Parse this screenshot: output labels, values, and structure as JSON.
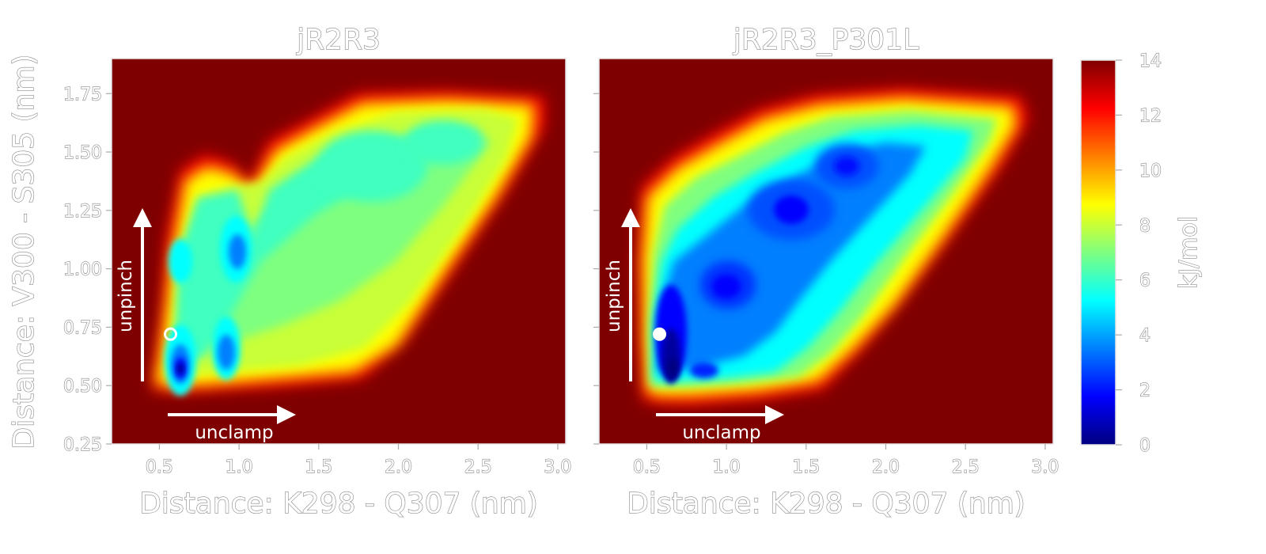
{
  "chart_data": [
    {
      "type": "heatmap",
      "title": "jR2R3",
      "xlabel": "Distance: K298 - Q307 (nm)",
      "ylabel": "Distance: V300 - S305 (nm)",
      "xlim": [
        0.2,
        3.05
      ],
      "ylim": [
        0.25,
        1.9
      ],
      "x_ticks": [
        "0.5",
        "1.0",
        "1.5",
        "2.0",
        "2.5",
        "3.0"
      ],
      "y_ticks": [
        "0.25",
        "0.50",
        "0.75",
        "1.00",
        "1.25",
        "1.50",
        "1.75"
      ],
      "background_value": 14,
      "basins": [
        {
          "x": 0.57,
          "y": 0.58,
          "value": 1.5
        },
        {
          "x": 0.88,
          "y": 0.65,
          "value": 3
        },
        {
          "x": 0.98,
          "y": 1.08,
          "value": 3.5
        },
        {
          "x": 0.58,
          "y": 1.05,
          "value": 5
        },
        {
          "x": 1.8,
          "y": 1.45,
          "value": 5
        }
      ],
      "marker": {
        "x": 0.57,
        "y": 0.72,
        "style": "open-circle"
      },
      "arrows": [
        {
          "label": "unpinch",
          "direction": "up"
        },
        {
          "label": "unclamp",
          "direction": "right"
        }
      ]
    },
    {
      "type": "heatmap",
      "title": "jR2R3_P301L",
      "xlabel": "Distance: K298 - Q307 (nm)",
      "xlim": [
        0.2,
        3.05
      ],
      "ylim": [
        0.25,
        1.9
      ],
      "x_ticks": [
        "0.5",
        "1.0",
        "1.5",
        "2.0",
        "2.5",
        "3.0"
      ],
      "background_value": 14,
      "basins": [
        {
          "x": 0.6,
          "y": 0.6,
          "value": 1
        },
        {
          "x": 0.98,
          "y": 0.9,
          "value": 2
        },
        {
          "x": 1.35,
          "y": 1.25,
          "value": 2.5
        },
        {
          "x": 1.85,
          "y": 1.45,
          "value": 3
        }
      ],
      "marker": {
        "x": 0.58,
        "y": 0.72,
        "style": "filled-circle"
      },
      "arrows": [
        {
          "label": "unpinch",
          "direction": "up"
        },
        {
          "label": "unclamp",
          "direction": "right"
        }
      ]
    }
  ],
  "colorbar": {
    "label": "kJ/mol",
    "min": 0,
    "max": 14,
    "ticks": [
      "0",
      "2",
      "4",
      "6",
      "8",
      "10",
      "12",
      "14"
    ],
    "colormap": "jet",
    "colors": [
      "#00007f",
      "#0000ff",
      "#007fff",
      "#00ffff",
      "#7fff7f",
      "#ffff00",
      "#ff7f00",
      "#ff0000",
      "#7f0000"
    ]
  }
}
